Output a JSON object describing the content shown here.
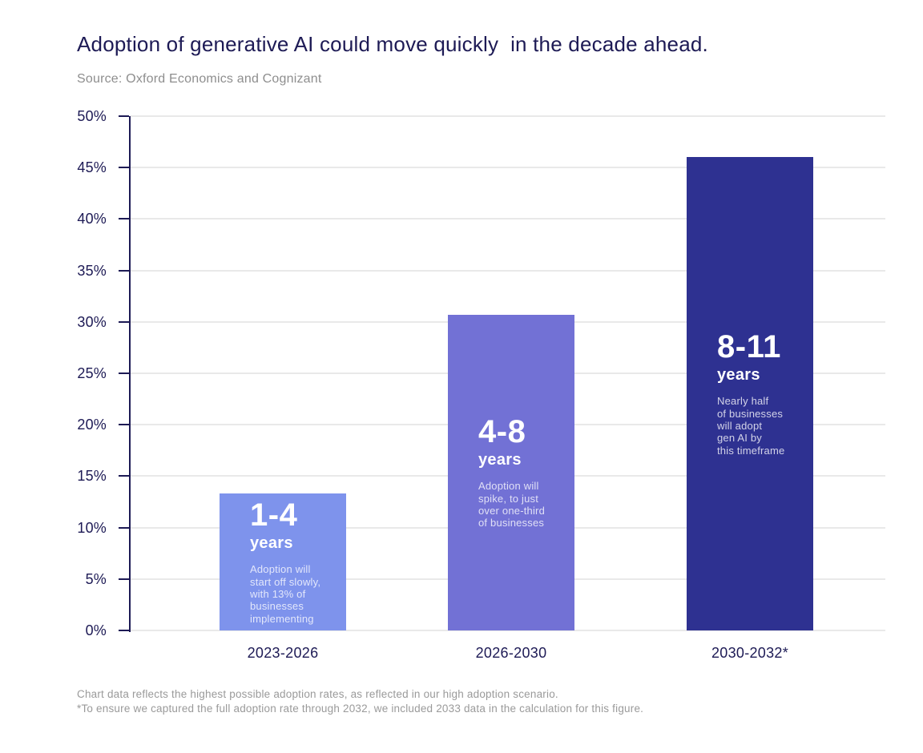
{
  "header": {
    "title": "Adoption of generative AI could move quickly  in the decade ahead.",
    "source": "Source: Oxford Economics and Cognizant"
  },
  "footer": {
    "note_1": "Chart data reflects the highest possible adoption rates, as reflected in our high adoption scenario.",
    "note_2": "*To ensure we captured the full adoption rate through 2032, we included 2033 data in the calculation for this figure."
  },
  "colors": {
    "navy_text": "#1d1a55",
    "gridline": "#e9e9e9",
    "muted_text": "#9a9a9a",
    "bar_text": "#ffffff",
    "bar_note_text": "rgba(255,255,255,0.78)"
  },
  "chart_data": {
    "type": "bar",
    "title": "Adoption of generative AI could move quickly in the decade ahead.",
    "source": "Oxford Economics and Cognizant",
    "categories": [
      "2023-2026",
      "2026-2030",
      "2030-2032*"
    ],
    "values": [
      13.3,
      30.7,
      46
    ],
    "value_unit": "%",
    "xlabel": "",
    "ylabel": "",
    "ylim": [
      0,
      50
    ],
    "ytick_step": 5,
    "ytick_labels": [
      "0%",
      "5%",
      "10%",
      "15%",
      "20%",
      "25%",
      "30%",
      "35%",
      "40%",
      "45%",
      "50%"
    ],
    "grid": true,
    "legend": false,
    "bar_colors": [
      "#7e93ec",
      "#7271d5",
      "#2e3191"
    ],
    "bar_annotations": [
      {
        "range": "1-4",
        "unit": "years",
        "note": "Adoption will\nstart off slowly,\nwith 13% of\nbusinesses\nimplementing"
      },
      {
        "range": "4-8",
        "unit": "years",
        "note": "Adoption will\nspike, to just\nover one-third\nof businesses"
      },
      {
        "range": "8-11",
        "unit": "years",
        "note": "Nearly half\nof businesses\nwill adopt\ngen AI by\nthis timeframe"
      }
    ]
  }
}
